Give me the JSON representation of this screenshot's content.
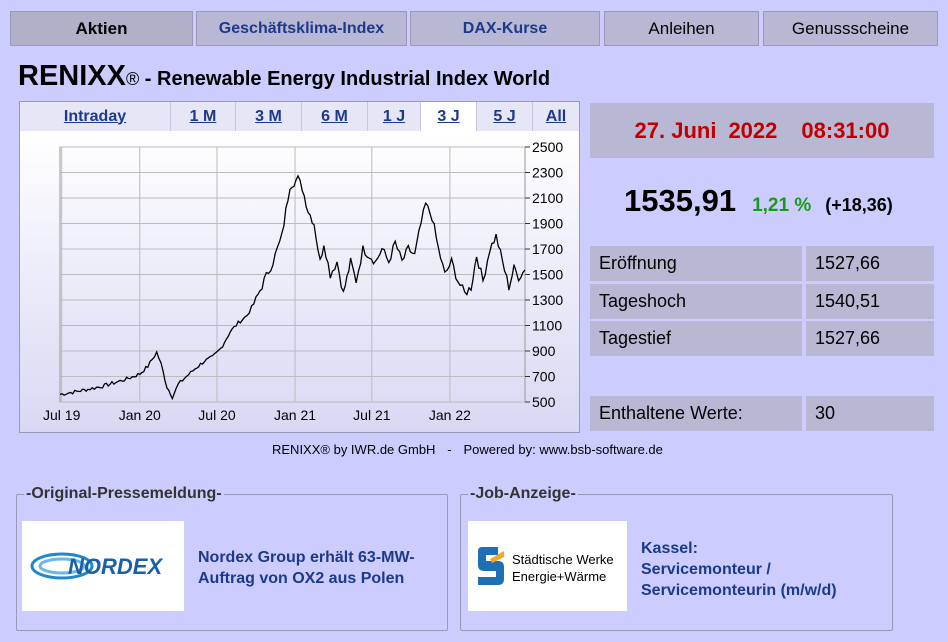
{
  "nav": {
    "tabs": [
      {
        "label": "Aktien"
      },
      {
        "label": "Geschäftsklima-Index"
      },
      {
        "label": "DAX-Kurse"
      },
      {
        "label": "Anleihen"
      },
      {
        "label": "Genussscheine"
      }
    ]
  },
  "header": {
    "title": "RENIXX",
    "reg": "®",
    "subtitle": " - Renewable Energy Industrial Index World"
  },
  "chart": {
    "ranges": [
      "Intraday",
      "1 M",
      "3 M",
      "6 M",
      "1 J",
      "3 J",
      "5 J",
      "All"
    ],
    "active_range": "3 J"
  },
  "chart_data": {
    "type": "line",
    "x_ticks": [
      "Jul 19",
      "Jan 20",
      "Jul 20",
      "Jan 21",
      "Jul 21",
      "Jan 22"
    ],
    "y_ticks": [
      2500,
      2300,
      2100,
      1900,
      1700,
      1500,
      1300,
      1100,
      900,
      700,
      500
    ],
    "ylim": [
      500,
      2500
    ],
    "grid": true,
    "x": [
      "2019-06-27",
      "2019-08-01",
      "2019-09-01",
      "2019-10-01",
      "2019-11-01",
      "2019-12-01",
      "2020-01-01",
      "2020-01-20",
      "2020-02-10",
      "2020-02-20",
      "2020-03-05",
      "2020-03-18",
      "2020-04-01",
      "2020-04-20",
      "2020-05-10",
      "2020-06-01",
      "2020-06-20",
      "2020-07-10",
      "2020-08-01",
      "2020-08-20",
      "2020-09-10",
      "2020-10-01",
      "2020-10-20",
      "2020-11-10",
      "2020-12-01",
      "2020-12-20",
      "2021-01-08",
      "2021-01-18",
      "2021-02-01",
      "2021-02-15",
      "2021-03-01",
      "2021-03-10",
      "2021-03-25",
      "2021-04-10",
      "2021-04-25",
      "2021-05-12",
      "2021-05-25",
      "2021-06-10",
      "2021-06-25",
      "2021-07-10",
      "2021-07-25",
      "2021-08-10",
      "2021-08-25",
      "2021-09-10",
      "2021-09-25",
      "2021-10-10",
      "2021-10-25",
      "2021-11-05",
      "2021-11-20",
      "2021-12-05",
      "2021-12-20",
      "2022-01-05",
      "2022-01-20",
      "2022-02-05",
      "2022-02-20",
      "2022-03-05",
      "2022-03-20",
      "2022-04-05",
      "2022-04-20",
      "2022-05-05",
      "2022-05-20",
      "2022-06-01",
      "2022-06-12",
      "2022-06-27"
    ],
    "values": [
      560,
      580,
      600,
      620,
      650,
      680,
      720,
      780,
      890,
      800,
      620,
      540,
      640,
      700,
      760,
      820,
      850,
      920,
      1050,
      1120,
      1180,
      1300,
      1450,
      1600,
      1800,
      2200,
      2250,
      2180,
      2000,
      1900,
      1600,
      1750,
      1500,
      1600,
      1350,
      1600,
      1450,
      1700,
      1650,
      1600,
      1700,
      1600,
      1750,
      1600,
      1700,
      1650,
      1900,
      2050,
      1950,
      1700,
      1500,
      1600,
      1450,
      1350,
      1400,
      1650,
      1450,
      1700,
      1800,
      1600,
      1400,
      1550,
      1480,
      1536
    ],
    "series_color": "#000000"
  },
  "credit": {
    "left": "RENIXX® by IWR.de GmbH",
    "sep": "-",
    "right": "Powered by: www.bsb-software.de"
  },
  "quote": {
    "date_day": "27. Juni",
    "date_year": "2022",
    "time": "08:31:00",
    "price": "1535,91",
    "change_pct": "1,21 %",
    "change_abs": "(+18,36)",
    "pct_color": "#1a9a1a"
  },
  "stats": [
    {
      "label": "Eröffnung",
      "value": "1527,66"
    },
    {
      "label": "Tageshoch",
      "value": "1540,51"
    },
    {
      "label": "Tagestief",
      "value": "1527,66"
    },
    {
      "label": "Enthaltene Werte:",
      "value": "30"
    }
  ],
  "press": {
    "legend": "-Original-Pressemeldung-",
    "logo_text": "NORDEX",
    "headline": "Nordex Group erhält 63-MW-Auftrag von OX2 aus Polen"
  },
  "job": {
    "legend": "-Job-Anzeige-",
    "logo_line1": "Städtische Werke",
    "logo_line2": "Energie+Wärme",
    "city": "Kassel:",
    "title": "Servicemonteur / Servicemonteurin (m/w/d)"
  }
}
